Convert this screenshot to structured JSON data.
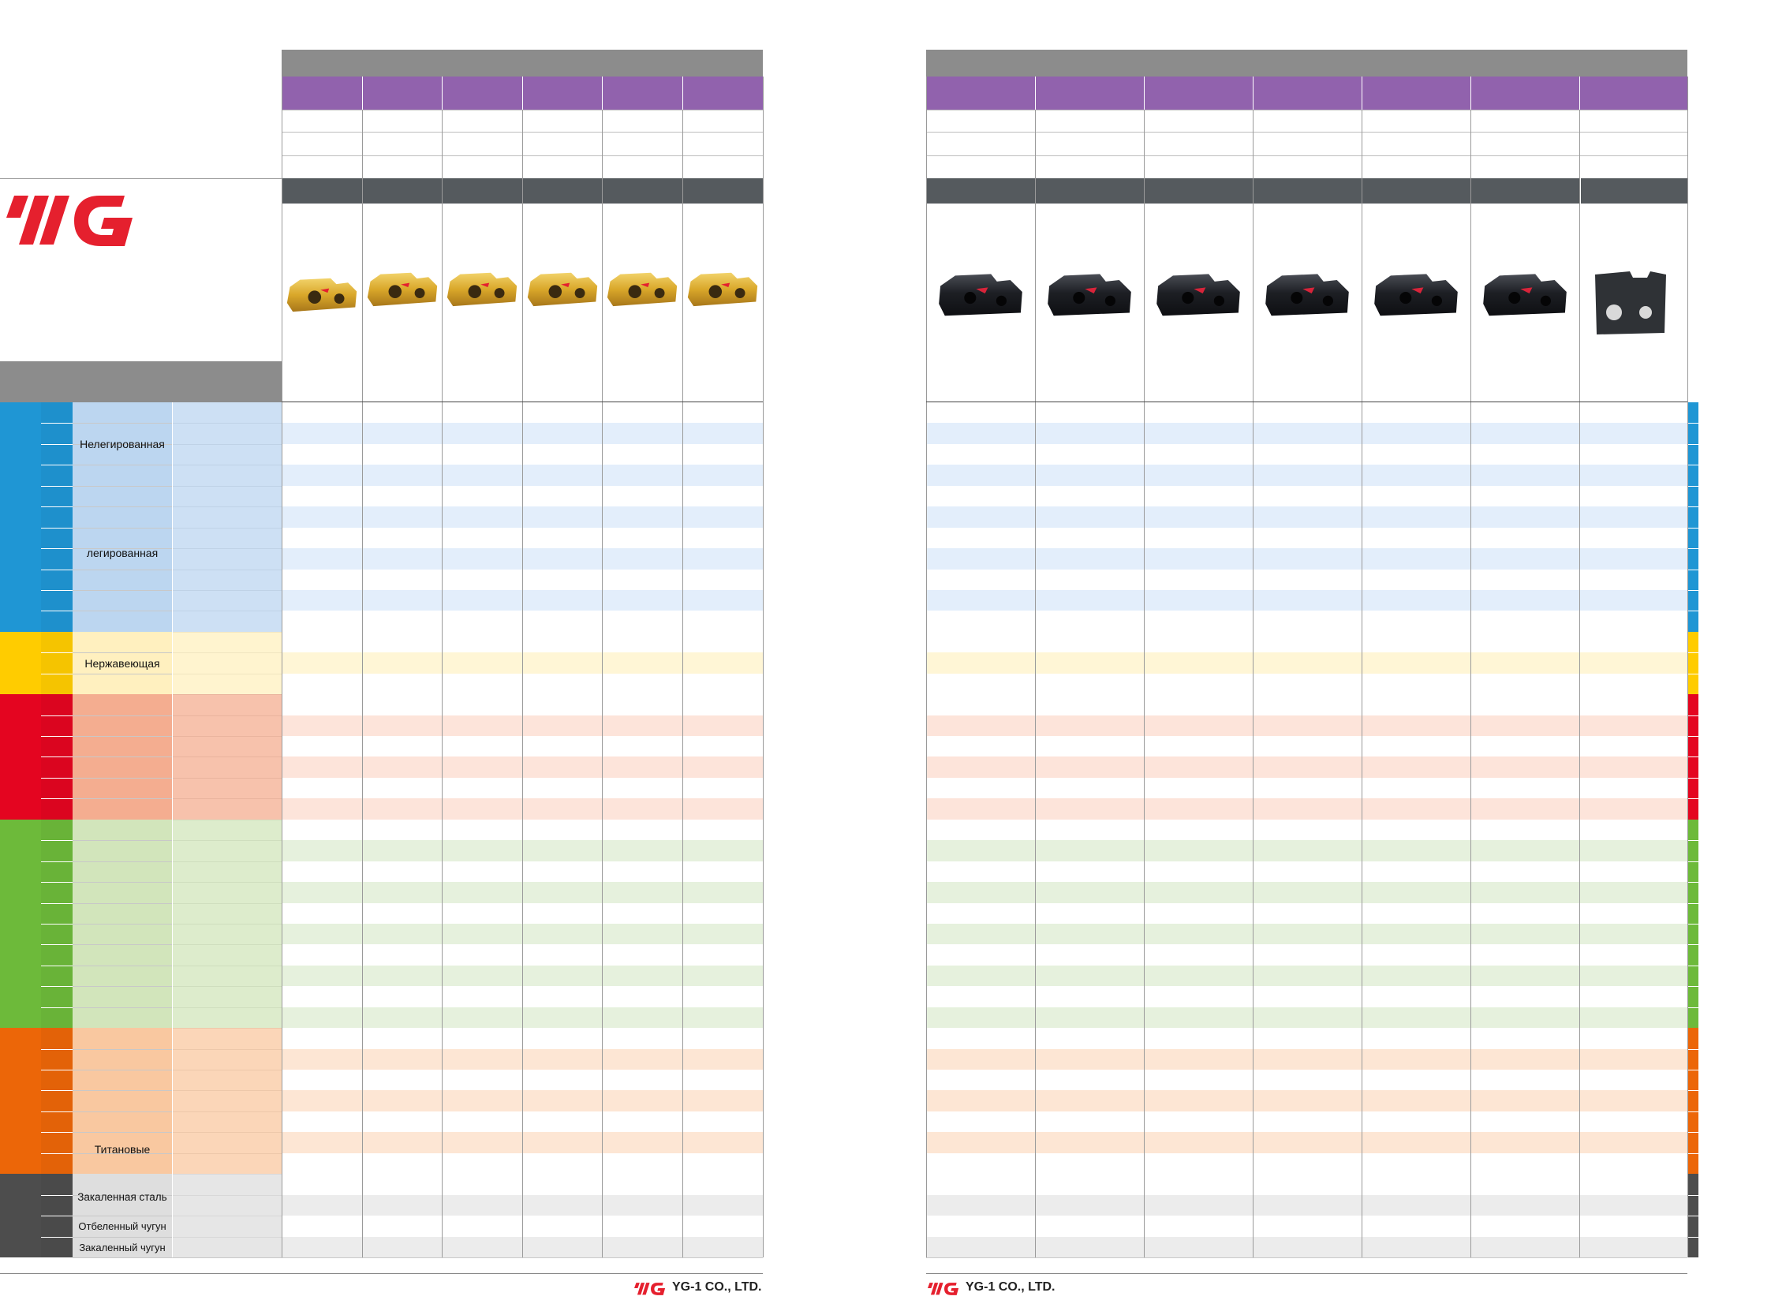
{
  "brand": {
    "logo_text": "YG",
    "logo_color": "#e5202e",
    "footer_company": "YG-1 CO., LTD."
  },
  "colors": {
    "header_grey": "#8c8c8c",
    "header_dark": "#555a5e",
    "header_purple": "#9162ad",
    "P": "#1f96d4",
    "M": "#ffcc00",
    "K": "#e40520",
    "N": "#6dba3a",
    "S": "#ec6608",
    "H": "#4d4d4d"
  },
  "materials": {
    "steel_unalloyed": "Нелегированная",
    "steel_alloyed": "легированная",
    "stainless": "Нержавеющая",
    "titanium": "Титановые",
    "hardened_steel": "Закаленная сталь",
    "chilled_cast_iron": "Отбеленный чугун",
    "hardened_cast_iron": "Закаленный чугун"
  },
  "left_inserts": [
    "gold-insert",
    "gold-insert",
    "gold-insert",
    "gold-insert",
    "gold-insert",
    "gold-insert"
  ],
  "right_inserts": [
    "black-insert",
    "black-insert",
    "black-insert",
    "black-insert",
    "black-insert",
    "black-insert",
    "grey-insert"
  ]
}
